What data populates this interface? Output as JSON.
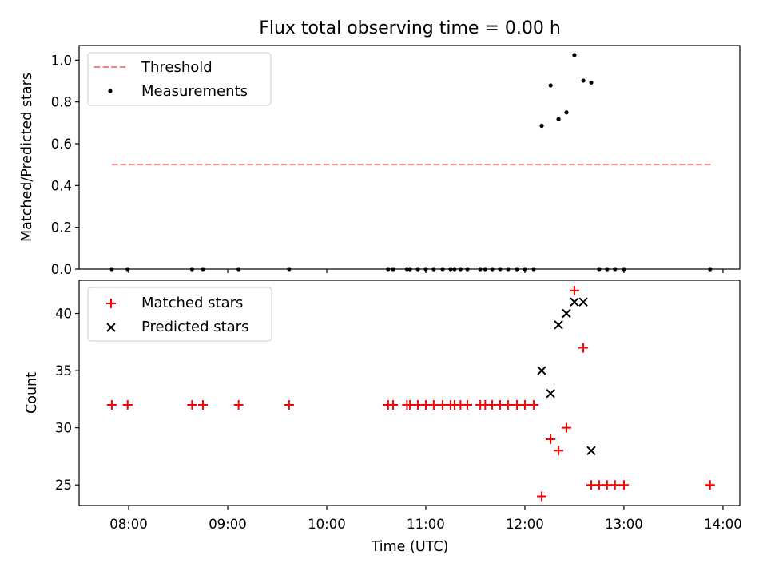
{
  "chart_data": [
    {
      "type": "scatter",
      "title": "Flux total observing time = 0.00 h",
      "xlabel": "",
      "ylabel": "Matched/Predicted stars",
      "xlim": [
        7.5,
        14.17
      ],
      "ylim": [
        0.0,
        1.07
      ],
      "yticks": [
        0.0,
        0.2,
        0.4,
        0.6,
        0.8,
        1.0
      ],
      "ytick_labels": [
        "0.0",
        "0.2",
        "0.4",
        "0.6",
        "0.8",
        "1.0"
      ],
      "xticks": [
        8,
        9,
        10,
        11,
        12,
        13,
        14
      ],
      "legend_loc": "upper-left",
      "threshold": {
        "name": "Threshold",
        "value": 0.5,
        "x_start": 7.83,
        "x_end": 13.88,
        "color": "#ff7f7f"
      },
      "series": [
        {
          "name": "Measurements",
          "color": "#000000",
          "x": [
            7.83,
            7.99,
            8.64,
            8.75,
            9.11,
            9.62,
            10.62,
            10.67,
            10.81,
            10.84,
            10.92,
            11.0,
            11.08,
            11.17,
            11.25,
            11.29,
            11.35,
            11.42,
            11.55,
            11.6,
            11.67,
            11.75,
            11.83,
            11.92,
            12.0,
            12.09,
            12.17,
            12.26,
            12.34,
            12.42,
            12.5,
            12.59,
            12.67,
            12.75,
            12.83,
            12.91,
            13.0,
            13.87
          ],
          "y": [
            0.0,
            0.0,
            0.0,
            0.0,
            0.0,
            0.0,
            0.0,
            0.0,
            0.0,
            0.0,
            0.0,
            0.0,
            0.0,
            0.0,
            0.0,
            0.0,
            0.0,
            0.0,
            0.0,
            0.0,
            0.0,
            0.0,
            0.0,
            0.0,
            0.0,
            0.0,
            0.686,
            0.879,
            0.718,
            0.75,
            1.024,
            0.902,
            0.893,
            0.0,
            0.0,
            0.0,
            0.0,
            0.0
          ]
        }
      ]
    },
    {
      "type": "scatter",
      "title": "",
      "xlabel": "Time (UTC)",
      "ylabel": "Count",
      "xlim": [
        7.5,
        14.17
      ],
      "ylim": [
        23.2,
        42.9
      ],
      "yticks": [
        25,
        30,
        35,
        40
      ],
      "ytick_labels": [
        "25",
        "30",
        "35",
        "40"
      ],
      "xticks": [
        8,
        9,
        10,
        11,
        12,
        13,
        14
      ],
      "xtick_labels": [
        "08:00",
        "09:00",
        "10:00",
        "11:00",
        "12:00",
        "13:00",
        "14:00"
      ],
      "legend_loc": "upper-left",
      "series": [
        {
          "name": "Matched stars",
          "marker": "+",
          "color": "#ff0000",
          "x": [
            7.83,
            7.99,
            8.64,
            8.75,
            9.11,
            9.62,
            10.62,
            10.67,
            10.81,
            10.84,
            10.92,
            11.0,
            11.08,
            11.17,
            11.25,
            11.29,
            11.35,
            11.42,
            11.55,
            11.6,
            11.67,
            11.75,
            11.83,
            11.92,
            12.0,
            12.09,
            12.17,
            12.26,
            12.34,
            12.42,
            12.5,
            12.59,
            12.67,
            12.75,
            12.83,
            12.91,
            13.0,
            13.87
          ],
          "y": [
            32,
            32,
            32,
            32,
            32,
            32,
            32,
            32,
            32,
            32,
            32,
            32,
            32,
            32,
            32,
            32,
            32,
            32,
            32,
            32,
            32,
            32,
            32,
            32,
            32,
            32,
            24,
            29,
            28,
            30,
            42,
            37,
            25,
            25,
            25,
            25,
            25,
            25
          ]
        },
        {
          "name": "Predicted stars",
          "marker": "x",
          "color": "#000000",
          "x": [
            12.17,
            12.26,
            12.34,
            12.42,
            12.5,
            12.59,
            12.67
          ],
          "y": [
            35,
            33,
            39,
            40,
            41,
            41,
            28
          ]
        }
      ]
    }
  ]
}
